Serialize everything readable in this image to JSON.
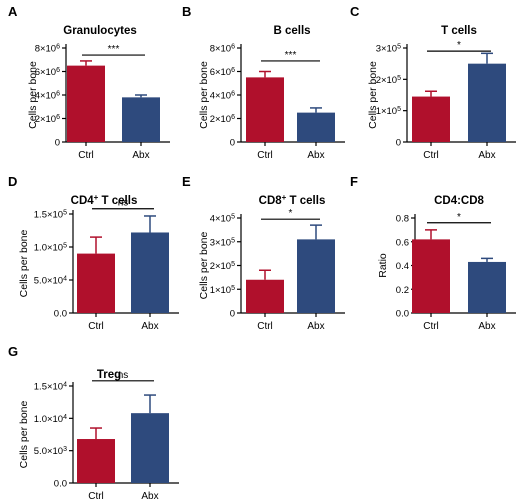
{
  "colors": {
    "ctrl": "#B0102C",
    "abx": "#2E4A7D",
    "axis": "#000000"
  },
  "chart_data": [
    {
      "letter": "A",
      "type": "bar",
      "title": "Granulocytes",
      "ylabel": "Cells per bone",
      "categories": [
        "Ctrl",
        "Abx"
      ],
      "values": [
        6500000,
        3800000
      ],
      "errors": [
        400000,
        200000
      ],
      "ylim": [
        0,
        8000000
      ],
      "yticks": [
        {
          "v": 0,
          "text": "0"
        },
        {
          "v": 2000000,
          "text": "2×10",
          "exp": "6"
        },
        {
          "v": 4000000,
          "text": "4×10",
          "exp": "6"
        },
        {
          "v": 6000000,
          "text": "6×10",
          "exp": "6"
        },
        {
          "v": 8000000,
          "text": "8×10",
          "exp": "6"
        }
      ],
      "sig": "***",
      "sig_level": 7400000
    },
    {
      "letter": "B",
      "type": "bar",
      "title": "B cells",
      "ylabel": "Cells per bone",
      "categories": [
        "Ctrl",
        "Abx"
      ],
      "values": [
        5500000,
        2500000
      ],
      "errors": [
        500000,
        400000
      ],
      "ylim": [
        0,
        8000000
      ],
      "yticks": [
        {
          "v": 0,
          "text": "0"
        },
        {
          "v": 2000000,
          "text": "2×10",
          "exp": "6"
        },
        {
          "v": 4000000,
          "text": "4×10",
          "exp": "6"
        },
        {
          "v": 6000000,
          "text": "6×10",
          "exp": "6"
        },
        {
          "v": 8000000,
          "text": "8×10",
          "exp": "6"
        }
      ],
      "sig": "***",
      "sig_level": 6900000
    },
    {
      "letter": "C",
      "type": "bar",
      "title": "T cells",
      "ylabel": "Cells per bone",
      "categories": [
        "Ctrl",
        "Abx"
      ],
      "values": [
        145000,
        250000
      ],
      "errors": [
        17000,
        33000
      ],
      "ylim": [
        0,
        300000
      ],
      "yticks": [
        {
          "v": 0,
          "text": "0"
        },
        {
          "v": 100000,
          "text": "1×10",
          "exp": "5"
        },
        {
          "v": 200000,
          "text": "2×10",
          "exp": "5"
        },
        {
          "v": 300000,
          "text": "3×10",
          "exp": "5"
        }
      ],
      "sig": "*",
      "sig_level": 290000
    },
    {
      "letter": "D",
      "type": "bar",
      "title": "CD4",
      "title_sup": "+",
      "title_rest": " T cells",
      "ylabel": "Cells per bone",
      "categories": [
        "Ctrl",
        "Abx"
      ],
      "values": [
        90000,
        122000
      ],
      "errors": [
        25000,
        25000
      ],
      "ylim": [
        0,
        150000
      ],
      "yticks": [
        {
          "v": 0,
          "text": "0.0"
        },
        {
          "v": 50000,
          "text": "5.0×10",
          "exp": "4"
        },
        {
          "v": 100000,
          "text": "1.0×10",
          "exp": "5"
        },
        {
          "v": 150000,
          "text": "1.5×10",
          "exp": "5"
        }
      ],
      "sig": "ns",
      "sig_level": 158000
    },
    {
      "letter": "E",
      "type": "bar",
      "title": "CD8",
      "title_sup": "+",
      "title_rest": " T cells",
      "ylabel": "Cells per bone",
      "categories": [
        "Ctrl",
        "Abx"
      ],
      "values": [
        140000,
        310000
      ],
      "errors": [
        40000,
        60000
      ],
      "ylim": [
        0,
        400000
      ],
      "yticks": [
        {
          "v": 0,
          "text": "0"
        },
        {
          "v": 100000,
          "text": "1×10",
          "exp": "5"
        },
        {
          "v": 200000,
          "text": "2×10",
          "exp": "5"
        },
        {
          "v": 300000,
          "text": "3×10",
          "exp": "5"
        },
        {
          "v": 400000,
          "text": "4×10",
          "exp": "5"
        }
      ],
      "sig": "*",
      "sig_level": 395000
    },
    {
      "letter": "F",
      "type": "bar",
      "title": "CD4:CD8",
      "ylabel": "Ratio",
      "categories": [
        "Ctrl",
        "Abx"
      ],
      "values": [
        0.62,
        0.43
      ],
      "errors": [
        0.08,
        0.03
      ],
      "ylim": [
        0,
        0.8
      ],
      "yticks": [
        {
          "v": 0,
          "text": "0.0"
        },
        {
          "v": 0.2,
          "text": "0.2"
        },
        {
          "v": 0.4,
          "text": "0.4"
        },
        {
          "v": 0.6,
          "text": "0.6"
        },
        {
          "v": 0.8,
          "text": "0.8"
        }
      ],
      "sig": "*",
      "sig_level": 0.76
    },
    {
      "letter": "G",
      "type": "bar",
      "title": "Treg",
      "ylabel": "Cells per bone",
      "categories": [
        "Ctrl",
        "Abx"
      ],
      "values": [
        6800,
        10800
      ],
      "errors": [
        1700,
        2800
      ],
      "ylim": [
        0,
        15000
      ],
      "yticks": [
        {
          "v": 0,
          "text": "0.0"
        },
        {
          "v": 5000,
          "text": "5.0×10",
          "exp": "3"
        },
        {
          "v": 10000,
          "text": "1.0×10",
          "exp": "4"
        },
        {
          "v": 15000,
          "text": "1.5×10",
          "exp": "4"
        }
      ],
      "sig": "ns",
      "sig_level": 15800
    }
  ]
}
